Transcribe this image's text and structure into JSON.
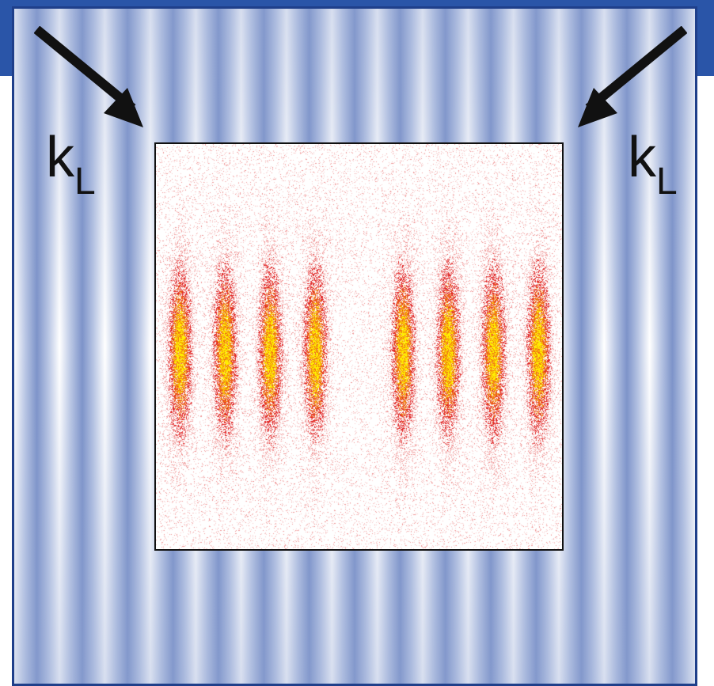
{
  "labels": {
    "left_beam": {
      "main": "k",
      "sub": "L"
    },
    "right_beam": {
      "main": "k",
      "sub": "L"
    }
  },
  "colors": {
    "header_blue": "#2a55a8",
    "frame_border": "#1f3f8a",
    "standing_wave_dark": "#7d93c9",
    "standing_wave_light": "#ffffff",
    "fringe_low": "#f2a0a0",
    "fringe_mid": "#e83020",
    "fringe_high": "#ffe600",
    "arrow": "#111111"
  },
  "icons": {
    "left_arrow": "arrow-down-right-icon",
    "right_arrow": "arrow-down-left-icon"
  },
  "interference_pattern": {
    "fringe_count": 8,
    "gap_between_groups": true
  }
}
